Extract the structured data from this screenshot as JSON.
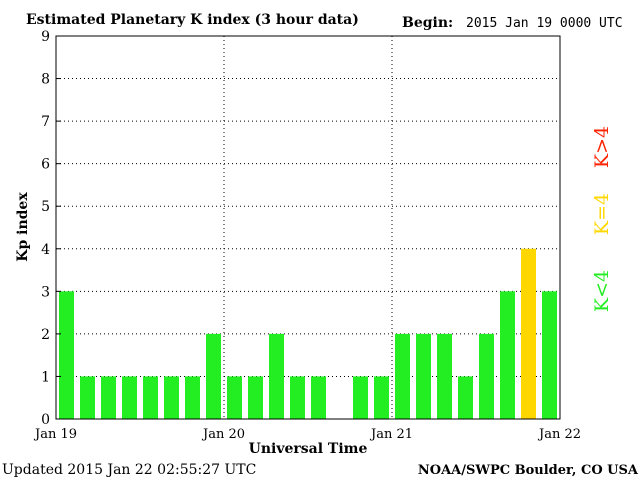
{
  "header": {
    "title": "Estimated Planetary K index (3 hour data)",
    "begin_label": "Begin:",
    "begin_value": "2015 Jan 19 0000 UTC"
  },
  "footer": {
    "updated": "Updated 2015 Jan 22 02:55:27 UTC",
    "credit": "NOAA/SWPC Boulder, CO USA"
  },
  "legend": {
    "storm": "K>4",
    "active": "K=4",
    "quiet": "K<4"
  },
  "colors": {
    "quiet": "#22ee22",
    "active": "#ffd700",
    "storm": "#ff2200",
    "grid": "#000000",
    "axis": "#000000"
  },
  "chart_data": {
    "type": "bar",
    "title": "Estimated Planetary K index (3 hour data)",
    "xlabel": "Universal Time",
    "ylabel": "Kp index",
    "ylim": [
      0,
      9
    ],
    "yticks": [
      "0",
      "1",
      "2",
      "3",
      "4",
      "5",
      "6",
      "7",
      "8",
      "9"
    ],
    "xticks": [
      "Jan 19",
      "Jan 20",
      "Jan 21",
      "Jan 22"
    ],
    "grid": true,
    "bins_per_day": 8,
    "values": [
      3,
      1,
      1,
      1,
      1,
      1,
      1,
      2,
      1,
      1,
      2,
      1,
      1,
      0,
      1,
      1,
      2,
      2,
      2,
      1,
      2,
      3,
      4,
      3
    ]
  }
}
